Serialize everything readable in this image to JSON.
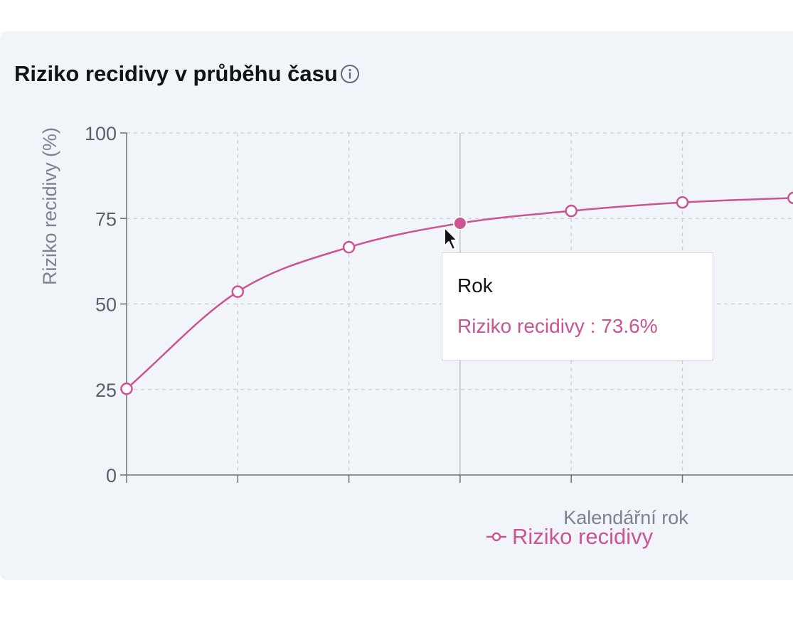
{
  "card": {
    "title": "Riziko recidivy v průběhu času",
    "info_icon": "info-circle-icon"
  },
  "chart_data": {
    "type": "line",
    "ylabel": "Riziko recidivy (%)",
    "xlabel": "Kalendářní rok",
    "ylim": [
      0,
      100
    ],
    "yticks": [
      0,
      25,
      50,
      75,
      100
    ],
    "grid": true,
    "legend": "bottom-center",
    "series": [
      {
        "name": "Riziko recidivy",
        "color": "#cc5491",
        "values": [
          25.2,
          53.6,
          66.6,
          73.6,
          77.2,
          79.7,
          81.0
        ]
      }
    ],
    "active_index": 3
  },
  "tooltip": {
    "title": "Rok",
    "value_text": "Riziko recidivy : 73.6%"
  },
  "cursor_icon": "mouse-pointer-icon"
}
